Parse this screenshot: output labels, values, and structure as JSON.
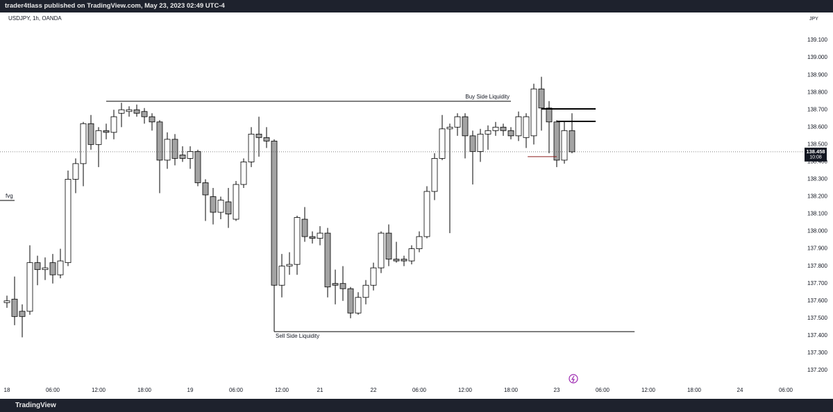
{
  "header": {
    "publisher": "trader4tlass published on TradingView.com, May 23, 2023 02:49 UTC-4",
    "brand": "TradingView"
  },
  "chart_data": {
    "type": "candlestick",
    "title": "USDJPY, 1h, OANDA",
    "currency": "JPY",
    "countdown": "10:08",
    "up_color": "#ffffff",
    "down_color": "#a3a3a3",
    "edge_color": "#000000",
    "open": [
      137.59,
      137.61,
      137.54,
      137.54,
      137.82,
      137.78,
      137.82,
      137.75,
      137.82,
      138.3,
      138.39,
      138.62,
      138.5,
      138.58,
      138.57,
      138.68,
      138.69,
      138.7,
      138.69,
      138.66,
      138.63,
      138.41,
      138.53,
      138.44,
      138.42,
      138.46,
      138.28,
      138.2,
      138.11,
      138.17,
      138.07,
      138.27,
      138.4,
      138.56,
      138.54,
      138.52,
      137.69,
      137.8,
      137.81,
      138.07,
      137.97,
      137.96,
      137.99,
      137.7,
      137.7,
      137.67,
      137.53,
      137.62,
      137.69,
      137.79,
      137.99,
      137.84,
      137.84,
      137.83,
      137.9,
      137.97,
      138.23,
      138.42,
      138.59,
      138.6,
      138.66,
      138.55,
      138.46,
      138.56,
      138.58,
      138.6,
      138.58,
      138.55,
      138.54,
      138.55,
      138.82,
      138.71,
      138.63,
      138.41,
      138.58
    ],
    "high": [
      137.63,
      137.74,
      137.58,
      137.92,
      137.86,
      137.85,
      137.87,
      137.9,
      138.35,
      138.42,
      138.63,
      138.67,
      138.6,
      138.62,
      138.7,
      138.74,
      138.72,
      138.73,
      138.71,
      138.68,
      138.64,
      138.57,
      138.56,
      138.49,
      138.49,
      138.47,
      138.3,
      138.25,
      138.2,
      138.25,
      138.29,
      138.42,
      138.6,
      138.66,
      138.6,
      138.53,
      137.87,
      137.88,
      138.09,
      138.14,
      138.0,
      138.03,
      138.02,
      137.78,
      137.8,
      137.68,
      137.65,
      137.72,
      137.82,
      138.0,
      138.04,
      137.94,
      137.86,
      137.92,
      138.0,
      138.26,
      138.45,
      138.67,
      138.62,
      138.68,
      138.68,
      138.58,
      138.59,
      138.61,
      138.63,
      138.62,
      138.6,
      138.69,
      138.68,
      138.85,
      138.89,
      138.75,
      138.64,
      138.63,
      138.68
    ],
    "low": [
      137.56,
      137.46,
      137.39,
      137.52,
      137.69,
      137.72,
      137.7,
      137.73,
      137.8,
      138.22,
      138.26,
      138.47,
      138.37,
      138.53,
      138.53,
      138.6,
      138.66,
      138.66,
      138.62,
      138.58,
      138.22,
      138.36,
      138.38,
      138.4,
      138.36,
      138.26,
      138.06,
      138.04,
      138.07,
      138.02,
      138.06,
      138.25,
      138.37,
      138.43,
      138.48,
      137.43,
      137.62,
      137.75,
      137.75,
      137.94,
      137.93,
      137.92,
      137.62,
      137.58,
      137.6,
      137.5,
      137.52,
      137.58,
      137.66,
      137.76,
      137.8,
      137.82,
      137.8,
      137.81,
      137.88,
      137.96,
      138.18,
      138.41,
      137.99,
      138.55,
      138.42,
      138.27,
      138.4,
      138.47,
      138.55,
      138.55,
      138.53,
      138.52,
      138.48,
      138.5,
      138.58,
      138.45,
      138.37,
      138.39,
      138.45
    ],
    "close": [
      137.6,
      137.51,
      137.51,
      137.82,
      137.78,
      137.79,
      137.75,
      137.83,
      138.3,
      138.39,
      138.62,
      138.5,
      138.58,
      138.57,
      138.66,
      138.7,
      138.7,
      138.68,
      138.66,
      138.63,
      138.41,
      138.53,
      138.42,
      138.42,
      138.46,
      138.28,
      138.21,
      138.11,
      138.18,
      138.1,
      138.27,
      138.4,
      138.56,
      138.54,
      138.52,
      137.69,
      137.8,
      137.81,
      138.08,
      137.97,
      137.96,
      137.99,
      137.68,
      137.69,
      137.67,
      137.53,
      137.62,
      137.69,
      137.79,
      137.99,
      137.84,
      137.83,
      137.83,
      137.9,
      137.97,
      138.23,
      138.42,
      138.59,
      138.6,
      138.66,
      138.55,
      138.46,
      138.56,
      138.58,
      138.6,
      138.58,
      138.55,
      138.66,
      138.66,
      138.82,
      138.71,
      138.63,
      138.41,
      138.58,
      138.458
    ],
    "xlim": [
      -0.909,
      104.364
    ],
    "xticks": [
      {
        "value": 0,
        "label": "18"
      },
      {
        "value": 6,
        "label": "06:00"
      },
      {
        "value": 12,
        "label": "12:00"
      },
      {
        "value": 18,
        "label": "18:00"
      },
      {
        "value": 24,
        "label": "19"
      },
      {
        "value": 30,
        "label": "06:00"
      },
      {
        "value": 36,
        "label": "12:00"
      },
      {
        "value": 41,
        "label": "21"
      },
      {
        "value": 48,
        "label": "22"
      },
      {
        "value": 54,
        "label": "06:00"
      },
      {
        "value": 60,
        "label": "12:00"
      },
      {
        "value": 66,
        "label": "18:00"
      },
      {
        "value": 72,
        "label": "23"
      },
      {
        "value": 78,
        "label": "06:00"
      },
      {
        "value": 84,
        "label": "12:00"
      },
      {
        "value": 90,
        "label": "18:00"
      },
      {
        "value": 96,
        "label": "24"
      },
      {
        "value": 102,
        "label": "06:00"
      }
    ],
    "ylim": [
      137.116,
      139.26
    ],
    "yticks": [
      {
        "value": 137.2,
        "label": "137.200"
      },
      {
        "value": 137.3,
        "label": "137.300"
      },
      {
        "value": 137.4,
        "label": "137.400"
      },
      {
        "value": 137.5,
        "label": "137.500"
      },
      {
        "value": 137.6,
        "label": "137.600"
      },
      {
        "value": 137.7,
        "label": "137.700"
      },
      {
        "value": 137.8,
        "label": "137.800"
      },
      {
        "value": 137.9,
        "label": "137.900"
      },
      {
        "value": 138.0,
        "label": "138.000"
      },
      {
        "value": 138.1,
        "label": "138.100"
      },
      {
        "value": 138.2,
        "label": "138.200"
      },
      {
        "value": 138.3,
        "label": "138.300"
      },
      {
        "value": 138.4,
        "label": "138.400"
      },
      {
        "value": 138.5,
        "label": "138.500"
      },
      {
        "value": 138.6,
        "label": "138.600"
      },
      {
        "value": 138.7,
        "label": "138.700"
      },
      {
        "value": 138.8,
        "label": "138.800"
      },
      {
        "value": 138.9,
        "label": "138.900"
      },
      {
        "value": 139.0,
        "label": "139.000"
      },
      {
        "value": 139.1,
        "label": "139.100"
      }
    ],
    "levels": [
      {
        "label": "Buy Side Liquidity",
        "price": 138.749,
        "x": [
          13,
          66
        ],
        "color": "#000000",
        "width": 1
      },
      {
        "label": "Sell Side Liquidity",
        "price": 137.423,
        "x": [
          35,
          82.2
        ],
        "color": "#000000",
        "width": 1,
        "vertical_from": 137.69
      },
      {
        "price": 138.705,
        "x": [
          70,
          77.1
        ],
        "color": "#000000",
        "width": 2
      },
      {
        "price": 138.633,
        "x": [
          72,
          77.1
        ],
        "color": "#000000",
        "width": 2
      },
      {
        "price": 138.43,
        "x": [
          68.2,
          72
        ],
        "color": "#8b1a1a",
        "width": 1
      },
      {
        "label": "fvg",
        "price": 138.178,
        "x": [
          -0.909,
          1
        ],
        "color": "#000000",
        "width": 1
      }
    ]
  }
}
